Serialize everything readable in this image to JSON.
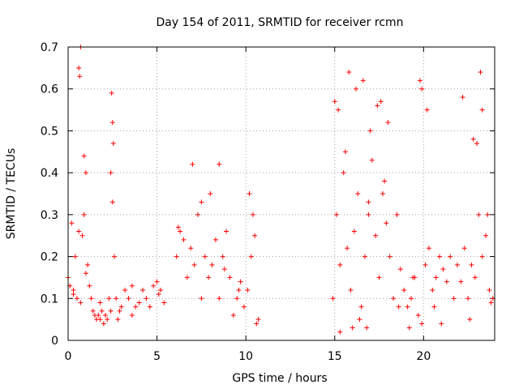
{
  "chart_data": {
    "type": "scatter",
    "title": "Day 154 of 2011, SRMTID for receiver rcmn",
    "xlabel": "GPS time / hours",
    "ylabel": "SRMTID / TECUs",
    "xlim": [
      0,
      24
    ],
    "ylim": [
      0,
      0.7
    ],
    "xticks": [
      0,
      5,
      10,
      15,
      20
    ],
    "xtick_labels": [
      "0",
      "5",
      "10",
      "15",
      "20"
    ],
    "yticks": [
      0,
      0.1,
      0.2,
      0.3,
      0.4,
      0.5,
      0.6,
      0.7
    ],
    "ytick_labels": [
      "0",
      "0.1",
      "0.2",
      "0.3",
      "0.4",
      "0.5",
      "0.6",
      "0.7"
    ],
    "grid": true,
    "marker": "+",
    "series": [
      {
        "name": "SRMTID",
        "color": "#ff0000",
        "x": [
          0.0,
          0.1,
          0.2,
          0.3,
          0.4,
          0.5,
          0.6,
          0.7,
          0.8,
          0.9,
          1.0,
          1.1,
          1.2,
          1.3,
          1.4,
          1.5,
          1.6,
          1.7,
          1.8,
          1.9,
          2.0,
          2.1,
          2.2,
          2.3,
          2.4,
          2.5,
          2.6,
          2.7,
          2.8,
          2.9,
          3.0,
          3.2,
          3.4,
          3.6,
          3.8,
          4.0,
          4.2,
          4.4,
          4.6,
          4.8,
          5.0,
          5.2,
          5.4,
          6.1,
          6.3,
          6.5,
          6.7,
          6.9,
          7.1,
          7.3,
          7.5,
          7.7,
          7.9,
          8.1,
          8.3,
          8.5,
          8.7,
          8.9,
          9.1,
          9.3,
          9.5,
          9.7,
          9.9,
          10.1,
          10.3,
          10.5,
          10.7,
          14.9,
          15.1,
          15.3,
          15.5,
          15.7,
          15.9,
          16.1,
          16.3,
          16.5,
          16.7,
          16.9,
          17.1,
          17.3,
          17.5,
          17.7,
          17.9,
          18.1,
          18.3,
          18.5,
          18.7,
          18.9,
          19.1,
          19.3,
          19.5,
          19.7,
          19.9,
          20.1,
          20.3,
          20.5,
          20.7,
          20.9,
          21.1,
          21.3,
          21.5,
          21.7,
          21.9,
          22.1,
          22.3,
          22.5,
          22.7,
          22.9,
          23.1,
          23.3,
          23.5,
          23.7,
          23.9,
          0.6,
          0.7,
          0.65,
          2.45,
          2.5,
          2.55,
          7.0,
          7.5,
          8.5,
          8.0,
          15.0,
          15.2,
          15.8,
          16.2,
          16.6,
          17.0,
          17.4,
          17.6,
          18.0,
          19.8,
          19.9,
          20.2,
          22.2,
          23.0,
          23.2,
          23.3,
          0.9,
          1.0,
          2.4,
          10.2,
          10.4,
          15.3,
          16.0,
          16.4,
          16.8,
          18.6,
          19.2,
          21.0,
          22.6,
          0.3,
          1.8,
          3.6,
          5.1,
          6.2,
          8.8,
          9.6,
          10.6,
          15.6,
          16.9,
          17.8,
          19.4,
          20.6,
          22.8,
          23.6,
          23.8
        ],
        "y": [
          0.15,
          0.13,
          0.28,
          0.12,
          0.2,
          0.1,
          0.26,
          0.09,
          0.25,
          0.3,
          0.16,
          0.18,
          0.13,
          0.1,
          0.07,
          0.06,
          0.05,
          0.06,
          0.05,
          0.07,
          0.04,
          0.06,
          0.05,
          0.1,
          0.07,
          0.33,
          0.2,
          0.1,
          0.05,
          0.07,
          0.08,
          0.12,
          0.1,
          0.06,
          0.08,
          0.09,
          0.12,
          0.1,
          0.08,
          0.13,
          0.14,
          0.12,
          0.09,
          0.2,
          0.26,
          0.24,
          0.15,
          0.22,
          0.18,
          0.3,
          0.1,
          0.2,
          0.15,
          0.18,
          0.24,
          0.1,
          0.2,
          0.26,
          0.15,
          0.06,
          0.1,
          0.14,
          0.08,
          0.12,
          0.2,
          0.25,
          0.05,
          0.1,
          0.3,
          0.18,
          0.4,
          0.22,
          0.12,
          0.26,
          0.35,
          0.08,
          0.2,
          0.3,
          0.43,
          0.25,
          0.15,
          0.35,
          0.28,
          0.2,
          0.1,
          0.3,
          0.17,
          0.12,
          0.08,
          0.1,
          0.15,
          0.06,
          0.04,
          0.18,
          0.22,
          0.12,
          0.15,
          0.2,
          0.17,
          0.14,
          0.2,
          0.1,
          0.18,
          0.14,
          0.22,
          0.1,
          0.18,
          0.15,
          0.3,
          0.2,
          0.25,
          0.12,
          0.1,
          0.65,
          0.7,
          0.63,
          0.59,
          0.52,
          0.47,
          0.42,
          0.33,
          0.42,
          0.35,
          0.57,
          0.55,
          0.64,
          0.6,
          0.62,
          0.5,
          0.56,
          0.57,
          0.52,
          0.62,
          0.6,
          0.55,
          0.58,
          0.47,
          0.64,
          0.55,
          0.44,
          0.4,
          0.4,
          0.35,
          0.3,
          0.02,
          0.03,
          0.05,
          0.03,
          0.08,
          0.03,
          0.04,
          0.05,
          0.11,
          0.09,
          0.13,
          0.11,
          0.27,
          0.17,
          0.12,
          0.04,
          0.45,
          0.33,
          0.38,
          0.15,
          0.08,
          0.48,
          0.3,
          0.09
        ]
      }
    ]
  }
}
